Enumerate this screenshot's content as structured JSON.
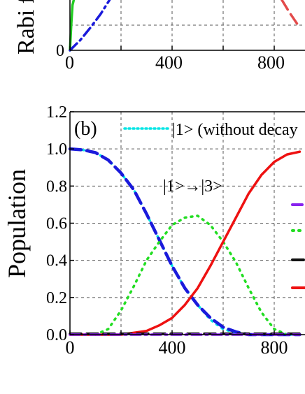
{
  "chart_data": [
    {
      "type": "line",
      "panel": "top",
      "ylabel": "Rabi f",
      "x_ticks": [
        "0",
        "400",
        "800"
      ],
      "y_ticks": [
        "0"
      ],
      "xlim": [
        0,
        900
      ],
      "series": [
        {
          "name": "",
          "color": "#22cc22",
          "style": "solid",
          "x": [
            0,
            5,
            10,
            15
          ],
          "y": [
            0.0,
            0.5,
            0.9,
            1.0
          ]
        },
        {
          "name": "",
          "color": "#1a1adb",
          "style": "dashdot",
          "x": [
            0,
            40,
            80,
            120,
            155
          ],
          "y": [
            0.0,
            0.2,
            0.45,
            0.72,
            1.0
          ]
        },
        {
          "name": "",
          "color": "#e34a4a",
          "style": "dashed",
          "x": [
            830,
            860,
            900
          ],
          "y": [
            1.0,
            0.75,
            0.45
          ]
        }
      ]
    },
    {
      "type": "line",
      "panel": "bottom",
      "panel_label": "(b)",
      "ylabel": "Population",
      "x_ticks": [
        "0",
        "400",
        "800"
      ],
      "y_ticks": [
        "0.0",
        "0.2",
        "0.4",
        "0.6",
        "0.8",
        "1.0",
        "1.2"
      ],
      "xlim": [
        0,
        900
      ],
      "ylim": [
        0,
        1.2
      ],
      "legend_text": "|1> (without decay",
      "annotation": "|1>→|3>",
      "series": [
        {
          "name": "|1> (without decay",
          "color": "#00e5e5",
          "style": "dotted",
          "x": [
            0,
            50,
            100,
            150,
            200,
            250,
            300,
            350,
            400,
            450,
            500,
            550,
            600,
            650,
            700,
            750,
            800,
            850,
            900
          ],
          "y": [
            1.0,
            0.995,
            0.98,
            0.94,
            0.87,
            0.78,
            0.65,
            0.51,
            0.37,
            0.25,
            0.16,
            0.08,
            0.03,
            0.01,
            0.0,
            0.0,
            0.0,
            0.0,
            0.0
          ]
        },
        {
          "name": "",
          "color": "#1a1adb",
          "style": "dashed",
          "x": [
            0,
            50,
            100,
            150,
            200,
            250,
            300,
            350,
            400,
            450,
            500,
            550,
            600,
            650,
            700,
            750,
            800,
            850,
            900
          ],
          "y": [
            1.0,
            0.995,
            0.98,
            0.94,
            0.87,
            0.78,
            0.65,
            0.51,
            0.37,
            0.25,
            0.16,
            0.09,
            0.04,
            0.015,
            0.0,
            0.0,
            0.0,
            0.0,
            0.0
          ]
        },
        {
          "name": "",
          "color": "#22dd22",
          "style": "dotted",
          "x": [
            100,
            150,
            200,
            250,
            300,
            350,
            400,
            450,
            500,
            550,
            600,
            650,
            700,
            750,
            800,
            850
          ],
          "y": [
            0.0,
            0.03,
            0.13,
            0.26,
            0.4,
            0.5,
            0.59,
            0.63,
            0.64,
            0.59,
            0.5,
            0.39,
            0.25,
            0.12,
            0.03,
            0.0
          ]
        },
        {
          "name": "",
          "color": "#ee1111",
          "style": "solid",
          "x": [
            0,
            200,
            250,
            300,
            350,
            400,
            450,
            500,
            550,
            600,
            650,
            700,
            750,
            800,
            850,
            900
          ],
          "y": [
            0.0,
            0.0,
            0.01,
            0.02,
            0.05,
            0.09,
            0.16,
            0.25,
            0.37,
            0.5,
            0.63,
            0.76,
            0.86,
            0.93,
            0.97,
            0.985
          ]
        },
        {
          "name": "",
          "color": "#111111",
          "style": "dashed",
          "x": [
            0,
            900
          ],
          "y": [
            0.005,
            0.005
          ]
        },
        {
          "name": "",
          "color": "#8822ee",
          "style": "dashdot",
          "x": [
            0,
            900
          ],
          "y": [
            0.0,
            0.0
          ]
        }
      ],
      "legend_swatches": [
        {
          "color": "#8822ee",
          "style": "dashdot"
        },
        {
          "color": "#22dd22",
          "style": "dotted"
        },
        {
          "color": "#111111",
          "style": "dashed"
        },
        {
          "color": "#ee1111",
          "style": "solid"
        }
      ]
    }
  ]
}
